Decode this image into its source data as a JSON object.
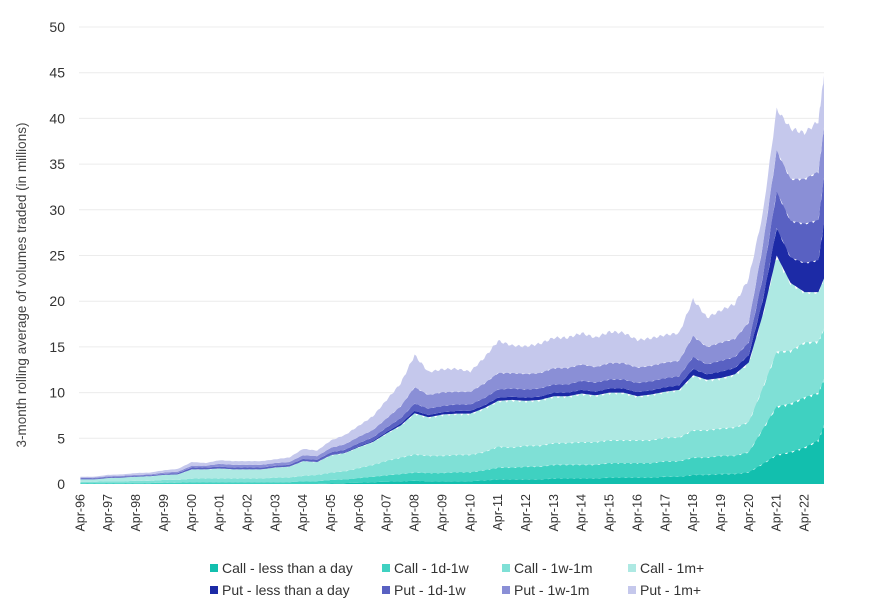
{
  "chart_data": {
    "type": "area",
    "stacked": true,
    "title": "",
    "xlabel": "",
    "ylabel": "3-month rolling average of volumes traded (in millions)",
    "ylim": [
      0,
      50
    ],
    "yticks": [
      0,
      5,
      10,
      15,
      20,
      25,
      30,
      35,
      40,
      45,
      50
    ],
    "grid": true,
    "legend_position": "bottom",
    "xtick_labels": [
      "Apr-96",
      "Apr-97",
      "Apr-98",
      "Apr-99",
      "Apr-00",
      "Apr-01",
      "Apr-02",
      "Apr-03",
      "Apr-04",
      "Apr-05",
      "Apr-06",
      "Apr-07",
      "Apr-08",
      "Apr-09",
      "Apr-10",
      "Apr-11",
      "Apr-12",
      "Apr-13",
      "Apr-14",
      "Apr-15",
      "Apr-16",
      "Apr-17",
      "Apr-18",
      "Apr-19",
      "Apr-20",
      "Apr-21",
      "Apr-22"
    ],
    "x": [
      1996.25,
      1996.75,
      1997.25,
      1997.75,
      1998.25,
      1998.75,
      1999.25,
      1999.75,
      2000.25,
      2000.75,
      2001.25,
      2001.75,
      2002.25,
      2002.75,
      2003.25,
      2003.75,
      2004.25,
      2004.75,
      2005.25,
      2005.75,
      2006.25,
      2006.75,
      2007.25,
      2007.75,
      2008.25,
      2008.75,
      2009.25,
      2009.75,
      2010.25,
      2010.75,
      2011.25,
      2011.75,
      2012.25,
      2012.75,
      2013.25,
      2013.75,
      2014.25,
      2014.75,
      2015.25,
      2015.75,
      2016.25,
      2016.75,
      2017.25,
      2017.75,
      2018.25,
      2018.75,
      2019.25,
      2019.75,
      2020.25,
      2020.75,
      2021.25,
      2021.75,
      2022.25,
      2022.75,
      2022.95
    ],
    "series": [
      {
        "name": "Call - less than a day",
        "color": "#12bfae",
        "values": [
          0,
          0,
          0,
          0,
          0,
          0,
          0,
          0,
          0,
          0,
          0,
          0,
          0,
          0,
          0,
          0,
          0,
          0,
          0.05,
          0.1,
          0.15,
          0.2,
          0.25,
          0.3,
          0.35,
          0.3,
          0.3,
          0.3,
          0.3,
          0.4,
          0.5,
          0.5,
          0.5,
          0.5,
          0.6,
          0.6,
          0.6,
          0.6,
          0.7,
          0.7,
          0.7,
          0.7,
          0.8,
          0.8,
          1.0,
          1.0,
          1.1,
          1.1,
          1.3,
          2.2,
          3.2,
          3.5,
          4.0,
          4.8,
          6.5
        ]
      },
      {
        "name": "Call - 1d-1w",
        "color": "#3fd1c1",
        "values": [
          0.1,
          0.1,
          0.1,
          0.1,
          0.1,
          0.1,
          0.15,
          0.15,
          0.2,
          0.2,
          0.2,
          0.2,
          0.2,
          0.2,
          0.2,
          0.2,
          0.3,
          0.3,
          0.4,
          0.4,
          0.5,
          0.6,
          0.7,
          0.8,
          0.9,
          0.9,
          0.9,
          1.0,
          1.0,
          1.1,
          1.3,
          1.3,
          1.4,
          1.4,
          1.5,
          1.5,
          1.5,
          1.5,
          1.6,
          1.6,
          1.6,
          1.6,
          1.7,
          1.7,
          1.9,
          1.9,
          2.0,
          2.0,
          2.2,
          3.8,
          5.3,
          5.3,
          5.5,
          5.2,
          5.0
        ]
      },
      {
        "name": "Call - 1w-1m",
        "color": "#7fe0d6",
        "values": [
          0.15,
          0.15,
          0.2,
          0.2,
          0.25,
          0.25,
          0.3,
          0.3,
          0.4,
          0.4,
          0.4,
          0.4,
          0.4,
          0.4,
          0.5,
          0.5,
          0.6,
          0.7,
          0.8,
          0.9,
          1.1,
          1.3,
          1.6,
          1.8,
          2.0,
          1.9,
          1.9,
          1.9,
          1.9,
          2.0,
          2.3,
          2.2,
          2.3,
          2.3,
          2.4,
          2.4,
          2.5,
          2.5,
          2.5,
          2.5,
          2.5,
          2.5,
          2.6,
          2.6,
          3.0,
          3.0,
          3.0,
          3.1,
          3.3,
          4.5,
          6.0,
          5.8,
          6.0,
          5.6,
          5.5
        ]
      },
      {
        "name": "Call - 1m+",
        "color": "#aee9e3",
        "values": [
          0.25,
          0.25,
          0.35,
          0.4,
          0.45,
          0.5,
          0.55,
          0.6,
          1.0,
          1.0,
          1.1,
          1.0,
          1.0,
          1.0,
          1.1,
          1.2,
          1.6,
          1.4,
          1.9,
          2.0,
          2.3,
          2.5,
          3.0,
          3.5,
          4.5,
          4.2,
          4.5,
          4.5,
          4.5,
          4.8,
          5.0,
          5.2,
          4.9,
          5.0,
          5.1,
          5.1,
          5.3,
          5.1,
          5.2,
          5.2,
          4.8,
          5.0,
          5.0,
          5.2,
          6.0,
          5.5,
          5.5,
          5.8,
          6.5,
          8.0,
          10.5,
          7.4,
          5.5,
          5.4,
          5.5
        ]
      },
      {
        "name": "Put - less than a day",
        "color": "#1c2aa6",
        "values": [
          0,
          0,
          0,
          0,
          0,
          0,
          0,
          0,
          0,
          0,
          0,
          0,
          0,
          0,
          0,
          0,
          0,
          0,
          0.02,
          0.05,
          0.08,
          0.1,
          0.15,
          0.2,
          0.25,
          0.25,
          0.25,
          0.3,
          0.3,
          0.3,
          0.35,
          0.35,
          0.35,
          0.35,
          0.4,
          0.4,
          0.4,
          0.4,
          0.45,
          0.45,
          0.45,
          0.45,
          0.5,
          0.5,
          0.7,
          0.6,
          0.7,
          0.7,
          0.8,
          1.6,
          3.0,
          2.8,
          3.2,
          3.5,
          6.0
        ]
      },
      {
        "name": "Put - 1d-1w",
        "color": "#5961c2",
        "values": [
          0.1,
          0.1,
          0.1,
          0.1,
          0.1,
          0.1,
          0.1,
          0.15,
          0.2,
          0.2,
          0.2,
          0.2,
          0.2,
          0.2,
          0.2,
          0.2,
          0.25,
          0.25,
          0.3,
          0.3,
          0.35,
          0.4,
          0.5,
          0.6,
          0.8,
          0.7,
          0.7,
          0.7,
          0.7,
          0.8,
          0.9,
          0.9,
          0.9,
          0.9,
          0.9,
          0.9,
          1.0,
          1.0,
          1.0,
          1.0,
          1.0,
          1.0,
          1.0,
          1.0,
          1.3,
          1.1,
          1.2,
          1.2,
          1.4,
          2.5,
          4.0,
          4.0,
          4.3,
          4.4,
          5.0
        ]
      },
      {
        "name": "Put - 1w-1m",
        "color": "#8a8fd6",
        "values": [
          0.1,
          0.1,
          0.1,
          0.1,
          0.1,
          0.1,
          0.15,
          0.15,
          0.2,
          0.2,
          0.3,
          0.3,
          0.3,
          0.3,
          0.3,
          0.3,
          0.4,
          0.4,
          0.5,
          0.6,
          0.7,
          0.8,
          1.0,
          1.3,
          1.8,
          1.5,
          1.5,
          1.4,
          1.4,
          1.6,
          1.8,
          1.7,
          1.7,
          1.7,
          1.8,
          1.8,
          1.8,
          1.7,
          1.8,
          1.8,
          1.7,
          1.7,
          1.7,
          1.7,
          2.3,
          1.9,
          2.0,
          2.0,
          2.2,
          3.4,
          4.5,
          4.6,
          4.9,
          5.3,
          5.5
        ]
      },
      {
        "name": "Put - 1m+",
        "color": "#c5c8ec",
        "values": [
          0.1,
          0.1,
          0.15,
          0.15,
          0.2,
          0.2,
          0.25,
          0.3,
          0.4,
          0.3,
          0.4,
          0.4,
          0.4,
          0.4,
          0.4,
          0.5,
          0.7,
          0.6,
          0.8,
          1.0,
          1.2,
          1.5,
          2.0,
          2.5,
          3.5,
          2.5,
          2.5,
          2.5,
          2.2,
          2.8,
          3.5,
          3.0,
          3.0,
          3.2,
          3.3,
          3.3,
          3.4,
          3.2,
          3.4,
          3.3,
          3.0,
          3.0,
          3.0,
          3.0,
          4.0,
          3.2,
          3.5,
          3.8,
          4.8,
          3.5,
          4.5,
          5.5,
          5.0,
          5.5,
          5.7
        ]
      }
    ]
  }
}
